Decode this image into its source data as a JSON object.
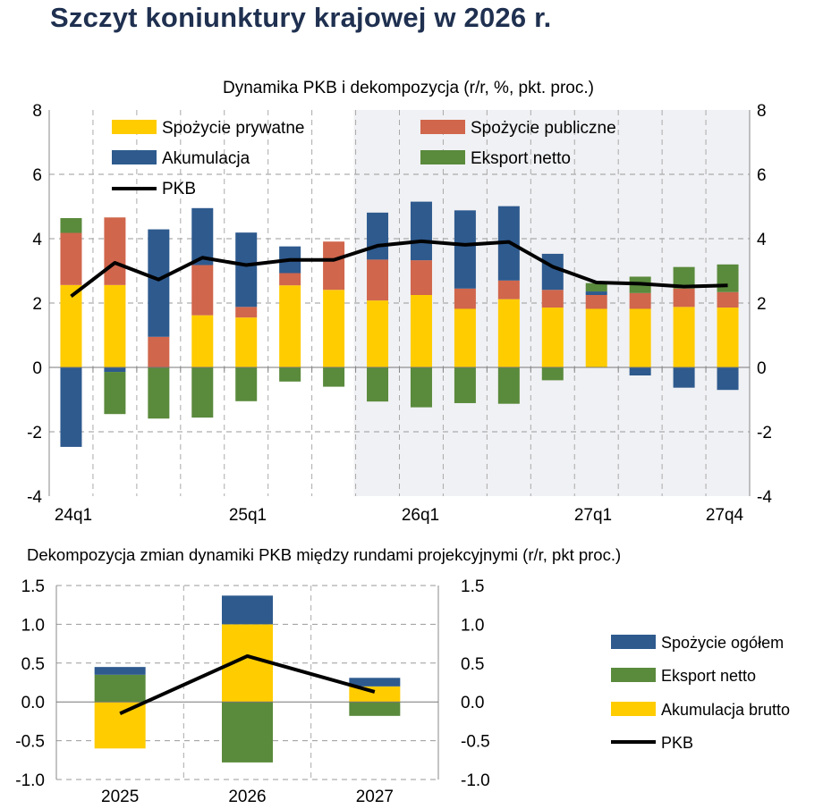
{
  "page_title": "Szczyt koniunktury krajowej w 2026 r.",
  "colors": {
    "yellow": "#ffcc00",
    "red": "#d0664c",
    "blue": "#2e5a8e",
    "green": "#5a8a3c",
    "line": "#000000",
    "forecast_shade": "#f0f1f4"
  },
  "chart_data": [
    {
      "type": "bar",
      "stacked": true,
      "title": "Dynamika PKB i dekompozycja (r/r, %, pkt. proc.)",
      "categories": [
        "24q1",
        "24q2",
        "24q3",
        "24q4",
        "25q1",
        "25q2",
        "25q3",
        "25q4",
        "26q1",
        "26q2",
        "26q3",
        "26q4",
        "27q1",
        "27q2",
        "27q3",
        "27q4"
      ],
      "tick_labels": [
        "24q1",
        "25q1",
        "26q1",
        "27q1",
        "27q4"
      ],
      "ylim": [
        -4,
        8
      ],
      "yticks": [
        -4,
        -2,
        0,
        2,
        4,
        6,
        8
      ],
      "secondary_y": true,
      "grid": true,
      "forecast_shaded_from": "25q4",
      "legend_placement": "top",
      "series": [
        {
          "name": "Spożycie prywatne",
          "color": "yellow",
          "values": [
            2.56,
            2.56,
            0,
            1.62,
            1.55,
            2.55,
            2.41,
            2.08,
            2.25,
            1.82,
            2.12,
            1.86,
            1.82,
            1.82,
            1.88,
            1.86
          ]
        },
        {
          "name": "Spożycie publiczne",
          "color": "red",
          "values": [
            1.62,
            2.1,
            0.95,
            1.56,
            0.33,
            0.38,
            1.5,
            1.27,
            1.08,
            0.63,
            0.58,
            0.55,
            0.43,
            0.49,
            0.57,
            0.48
          ]
        },
        {
          "name": "Akumulacja",
          "color": "blue",
          "values": [
            -2.47,
            -0.14,
            3.34,
            1.77,
            2.31,
            0.83,
            0,
            1.46,
            1.82,
            2.43,
            2.31,
            1.12,
            0.11,
            -0.25,
            -0.63,
            -0.7
          ]
        },
        {
          "name": "Eksport netto",
          "color": "green",
          "values": [
            0.46,
            -1.31,
            -1.59,
            -1.56,
            -1.05,
            -0.44,
            -0.6,
            -1.06,
            -1.24,
            -1.11,
            -1.13,
            -0.4,
            0.26,
            0.51,
            0.67,
            0.86
          ]
        },
        {
          "name": "PKB",
          "type": "line",
          "color": "line",
          "values": [
            2.21,
            3.25,
            2.73,
            3.41,
            3.18,
            3.34,
            3.34,
            3.78,
            3.92,
            3.81,
            3.9,
            3.13,
            2.64,
            2.6,
            2.51,
            2.55
          ]
        }
      ]
    },
    {
      "type": "bar",
      "stacked": true,
      "title": "Dekompozycja zmian dynamiki PKB między rundami projekcyjnymi (r/r, pkt proc.)",
      "categories": [
        "2025",
        "2026",
        "2027"
      ],
      "ylim": [
        -1.0,
        1.5
      ],
      "yticks": [
        "-1.0",
        "-0.5",
        "0.0",
        "0.5",
        "1.0",
        "1.5"
      ],
      "secondary_y": true,
      "grid": true,
      "legend_placement": "right",
      "series": [
        {
          "name": "Spożycie ogółem",
          "color": "blue",
          "values": [
            0.1,
            0.37,
            0.11
          ]
        },
        {
          "name": "Eksport netto",
          "color": "green",
          "values": [
            0.35,
            -0.78,
            -0.18
          ]
        },
        {
          "name": "Akumulacja brutto",
          "color": "yellow",
          "values": [
            -0.6,
            1.0,
            0.2
          ]
        },
        {
          "name": "PKB",
          "type": "line",
          "color": "line",
          "values": [
            -0.15,
            0.59,
            0.13
          ]
        }
      ]
    }
  ]
}
